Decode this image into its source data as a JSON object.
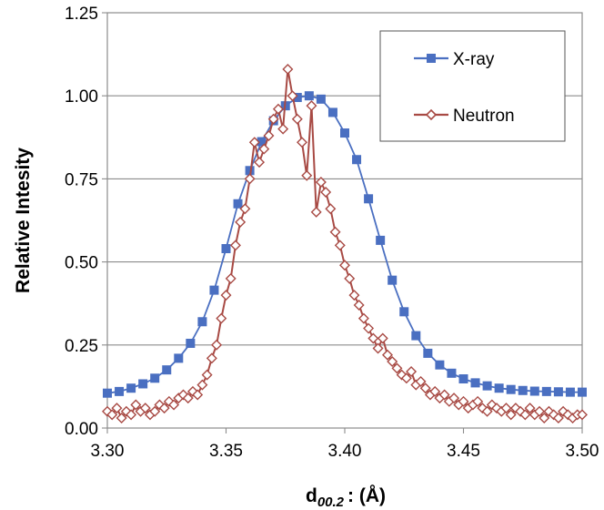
{
  "chart_data": {
    "type": "line",
    "xlabel_main": "d",
    "xlabel_sub": "00.2",
    "xlabel_rest": ": (Å)",
    "ylabel": "Relative Intesity",
    "xlim": [
      3.3,
      3.5
    ],
    "ylim": [
      0,
      1.25
    ],
    "x_ticks": [
      "3.30",
      "3.35",
      "3.40",
      "3.45",
      "3.50"
    ],
    "y_ticks": [
      "0.00",
      "0.25",
      "0.50",
      "0.75",
      "1.00",
      "1.25"
    ],
    "grid": "horizontal",
    "legend_position": "top-right",
    "colors": {
      "xray": "#4a6fc1",
      "neutron": "#a84a44",
      "grid": "#8c8c8c"
    },
    "series": [
      {
        "name": "X-ray",
        "marker": "square",
        "x": [
          3.3,
          3.305,
          3.31,
          3.315,
          3.32,
          3.325,
          3.33,
          3.335,
          3.34,
          3.345,
          3.35,
          3.355,
          3.36,
          3.365,
          3.37,
          3.375,
          3.38,
          3.385,
          3.39,
          3.395,
          3.4,
          3.405,
          3.41,
          3.415,
          3.42,
          3.425,
          3.43,
          3.435,
          3.44,
          3.445,
          3.45,
          3.455,
          3.46,
          3.465,
          3.47,
          3.475,
          3.48,
          3.485,
          3.49,
          3.495,
          3.5
        ],
        "y": [
          0.105,
          0.11,
          0.12,
          0.133,
          0.15,
          0.175,
          0.21,
          0.255,
          0.32,
          0.415,
          0.54,
          0.675,
          0.775,
          0.862,
          0.925,
          0.97,
          0.995,
          1.0,
          0.99,
          0.95,
          0.888,
          0.808,
          0.69,
          0.565,
          0.445,
          0.35,
          0.278,
          0.225,
          0.19,
          0.165,
          0.148,
          0.136,
          0.127,
          0.12,
          0.116,
          0.113,
          0.111,
          0.11,
          0.109,
          0.108,
          0.108
        ]
      },
      {
        "name": "Neutron",
        "marker": "diamond",
        "x": [
          3.3,
          3.302,
          3.304,
          3.306,
          3.308,
          3.31,
          3.312,
          3.314,
          3.316,
          3.318,
          3.32,
          3.322,
          3.324,
          3.326,
          3.328,
          3.33,
          3.332,
          3.334,
          3.336,
          3.338,
          3.34,
          3.342,
          3.344,
          3.346,
          3.348,
          3.35,
          3.352,
          3.354,
          3.356,
          3.358,
          3.36,
          3.362,
          3.364,
          3.366,
          3.368,
          3.37,
          3.372,
          3.374,
          3.376,
          3.378,
          3.38,
          3.382,
          3.384,
          3.386,
          3.388,
          3.39,
          3.392,
          3.394,
          3.396,
          3.398,
          3.4,
          3.402,
          3.404,
          3.406,
          3.408,
          3.41,
          3.412,
          3.414,
          3.416,
          3.418,
          3.42,
          3.422,
          3.424,
          3.426,
          3.428,
          3.43,
          3.432,
          3.434,
          3.436,
          3.438,
          3.44,
          3.442,
          3.444,
          3.446,
          3.448,
          3.45,
          3.452,
          3.454,
          3.456,
          3.458,
          3.46,
          3.462,
          3.464,
          3.466,
          3.468,
          3.47,
          3.472,
          3.474,
          3.476,
          3.478,
          3.48,
          3.482,
          3.484,
          3.486,
          3.488,
          3.49,
          3.492,
          3.494,
          3.496,
          3.498,
          3.5
        ],
        "y": [
          0.05,
          0.04,
          0.06,
          0.03,
          0.05,
          0.04,
          0.07,
          0.05,
          0.06,
          0.04,
          0.05,
          0.07,
          0.06,
          0.08,
          0.07,
          0.09,
          0.1,
          0.09,
          0.11,
          0.1,
          0.13,
          0.16,
          0.21,
          0.25,
          0.33,
          0.4,
          0.45,
          0.55,
          0.62,
          0.66,
          0.75,
          0.86,
          0.8,
          0.84,
          0.88,
          0.93,
          0.96,
          0.9,
          1.08,
          1.0,
          0.93,
          0.86,
          0.76,
          0.97,
          0.65,
          0.74,
          0.71,
          0.66,
          0.59,
          0.55,
          0.49,
          0.45,
          0.4,
          0.37,
          0.33,
          0.3,
          0.27,
          0.24,
          0.27,
          0.22,
          0.2,
          0.18,
          0.16,
          0.15,
          0.17,
          0.13,
          0.14,
          0.12,
          0.1,
          0.11,
          0.09,
          0.1,
          0.08,
          0.09,
          0.07,
          0.08,
          0.06,
          0.07,
          0.08,
          0.06,
          0.05,
          0.07,
          0.06,
          0.05,
          0.06,
          0.04,
          0.06,
          0.05,
          0.04,
          0.06,
          0.04,
          0.05,
          0.03,
          0.05,
          0.04,
          0.03,
          0.05,
          0.04,
          0.03,
          0.04,
          0.04
        ]
      }
    ]
  }
}
